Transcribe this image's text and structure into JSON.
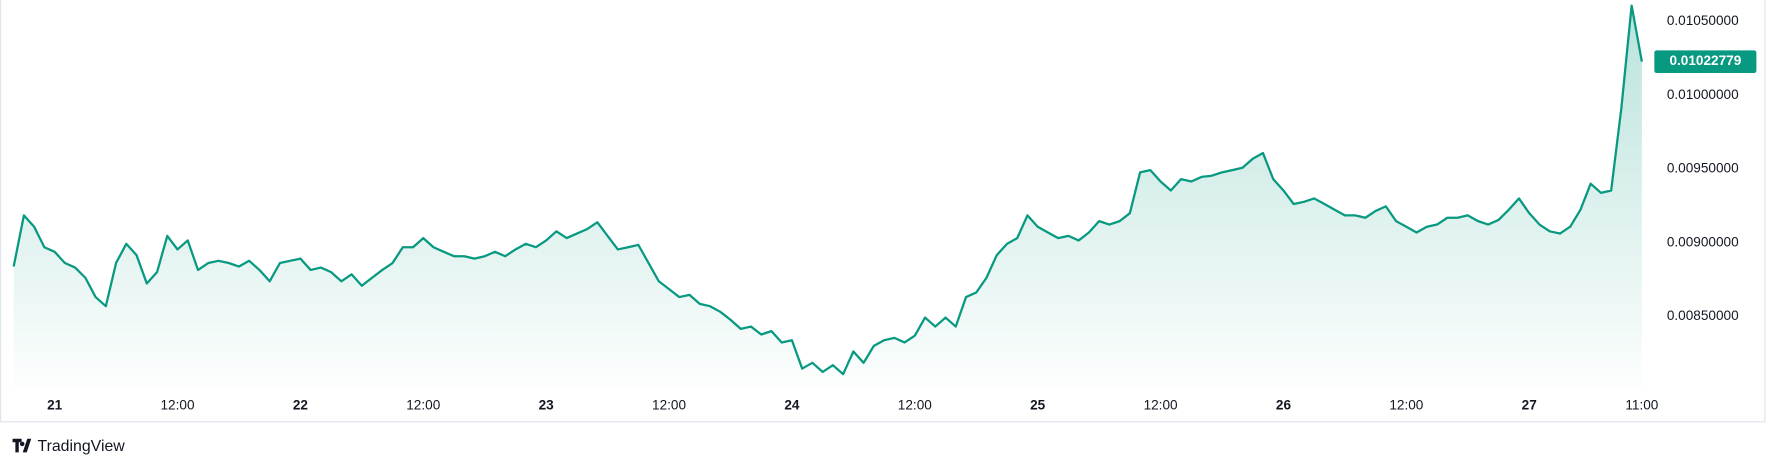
{
  "chart_data": {
    "type": "area",
    "watermark": "TradingView",
    "categories": [
      null,
      null,
      null,
      null,
      "21",
      null,
      null,
      null,
      null,
      null,
      null,
      null,
      null,
      null,
      null,
      null,
      "12:00",
      null,
      null,
      null,
      null,
      null,
      null,
      null,
      null,
      null,
      null,
      null,
      "22",
      null,
      null,
      null,
      null,
      null,
      null,
      null,
      null,
      null,
      null,
      null,
      "12:00",
      null,
      null,
      null,
      null,
      null,
      null,
      null,
      null,
      null,
      null,
      null,
      "23",
      null,
      null,
      null,
      null,
      null,
      null,
      null,
      null,
      null,
      null,
      null,
      "12:00",
      null,
      null,
      null,
      null,
      null,
      null,
      null,
      null,
      null,
      null,
      null,
      "24",
      null,
      null,
      null,
      null,
      null,
      null,
      null,
      null,
      null,
      null,
      null,
      "12:00",
      null,
      null,
      null,
      null,
      null,
      null,
      null,
      null,
      null,
      null,
      null,
      "25",
      null,
      null,
      null,
      null,
      null,
      null,
      null,
      null,
      null,
      null,
      null,
      "12:00",
      null,
      null,
      null,
      null,
      null,
      null,
      null,
      null,
      null,
      null,
      null,
      "26",
      null,
      null,
      null,
      null,
      null,
      null,
      null,
      null,
      null,
      null,
      null,
      "12:00",
      null,
      null,
      null,
      null,
      null,
      null,
      null,
      null,
      null,
      null,
      null,
      "27",
      null,
      null,
      null,
      null,
      null,
      null,
      null,
      null,
      null,
      null,
      "11:00"
    ],
    "series": [
      {
        "color": "#089981",
        "values": [
          0.008838,
          0.009185,
          0.009108,
          0.008969,
          0.008938,
          0.008862,
          0.008831,
          0.008762,
          0.008631,
          0.008569,
          0.008862,
          0.008992,
          0.008915,
          0.008723,
          0.0088,
          0.009046,
          0.008954,
          0.009015,
          0.008815,
          0.008862,
          0.008877,
          0.008862,
          0.008838,
          0.008877,
          0.008815,
          0.008738,
          0.008862,
          0.008877,
          0.008892,
          0.008815,
          0.008831,
          0.0088,
          0.008738,
          0.008785,
          0.008708,
          0.008762,
          0.008815,
          0.008862,
          0.008969,
          0.008969,
          0.009031,
          0.008969,
          0.008938,
          0.008908,
          0.008908,
          0.008892,
          0.008908,
          0.008938,
          0.008908,
          0.008954,
          0.008992,
          0.008969,
          0.009015,
          0.009077,
          0.009031,
          0.009062,
          0.009092,
          0.009138,
          0.009046,
          0.008954,
          0.008969,
          0.008985,
          0.008862,
          0.008738,
          0.008685,
          0.008631,
          0.008646,
          0.008585,
          0.008569,
          0.008531,
          0.008477,
          0.008415,
          0.008431,
          0.008377,
          0.0084,
          0.008323,
          0.008338,
          0.008146,
          0.008185,
          0.008123,
          0.008169,
          0.008108,
          0.008262,
          0.008185,
          0.0083,
          0.008338,
          0.008354,
          0.008323,
          0.008369,
          0.008492,
          0.008431,
          0.008492,
          0.008431,
          0.008631,
          0.008662,
          0.008762,
          0.008915,
          0.008992,
          0.009031,
          0.009185,
          0.009108,
          0.009069,
          0.009031,
          0.009046,
          0.009015,
          0.009069,
          0.009146,
          0.009123,
          0.009146,
          0.0092,
          0.009477,
          0.009492,
          0.009415,
          0.009354,
          0.009431,
          0.009415,
          0.009446,
          0.009454,
          0.009477,
          0.009492,
          0.009508,
          0.009569,
          0.009608,
          0.009431,
          0.009354,
          0.009262,
          0.009277,
          0.0093,
          0.009262,
          0.009223,
          0.009185,
          0.009185,
          0.009169,
          0.009215,
          0.009246,
          0.009146,
          0.009108,
          0.009069,
          0.009108,
          0.009123,
          0.009169,
          0.009169,
          0.009185,
          0.009146,
          0.009123,
          0.009154,
          0.009223,
          0.0093,
          0.0092,
          0.009123,
          0.009077,
          0.009062,
          0.009108,
          0.009223,
          0.0094,
          0.009338,
          0.009354,
          0.009915,
          0.010608,
          0.01022779
        ]
      }
    ],
    "ylim": [
      0.008008,
      0.010646
    ],
    "yticks": [
      {
        "value": 0.0085,
        "label": "0.00850000"
      },
      {
        "value": 0.009,
        "label": "0.00900000"
      },
      {
        "value": 0.0095,
        "label": "0.00950000"
      },
      {
        "value": 0.01,
        "label": "0.01000000"
      },
      {
        "value": 0.0105,
        "label": "0.01050000"
      }
    ],
    "grid": false
  }
}
